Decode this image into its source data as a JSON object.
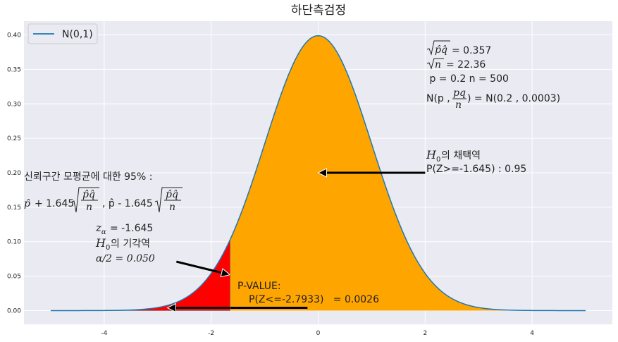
{
  "chart_data": {
    "type": "area",
    "title": "하단측검정",
    "xlabel": "",
    "ylabel": "",
    "xlim": [
      -5.5,
      5.5
    ],
    "ylim": [
      -0.02,
      0.42
    ],
    "grid": true,
    "legend": {
      "position": "top-left",
      "entries": [
        "N(0,1)"
      ]
    },
    "x_ticks": [
      -4,
      -2,
      0,
      2,
      4
    ],
    "x_tick_labels": [
      "-4",
      "-2",
      "0",
      "2",
      "4"
    ],
    "y_ticks": [
      0.0,
      0.05,
      0.1,
      0.15,
      0.2,
      0.25,
      0.3,
      0.35,
      0.4
    ],
    "y_tick_labels": [
      "0.00",
      "0.05",
      "0.10",
      "0.15",
      "0.20",
      "0.25",
      "0.30",
      "0.35",
      "0.40"
    ],
    "series": [
      {
        "name": "N(0,1)",
        "distribution": "standard-normal",
        "x_range": [
          -5,
          5
        ],
        "color": "#1f77b4"
      }
    ],
    "regions": [
      {
        "label": "rejection",
        "x_from": -5,
        "x_to": -1.645,
        "color": "#ff0000"
      },
      {
        "label": "acceptance",
        "x_from": -1.645,
        "x_to": 5,
        "color": "#ffa500"
      }
    ],
    "critical_value": -1.645,
    "observed_z": -2.7933,
    "arrows": [
      {
        "from": [
          2.0,
          0.2
        ],
        "to": [
          0.0,
          0.2
        ]
      },
      {
        "from": [
          -2.65,
          0.071
        ],
        "to": [
          -1.65,
          0.052
        ]
      },
      {
        "from": [
          -0.2,
          0.004
        ],
        "to": [
          -2.82,
          0.004
        ]
      }
    ],
    "annotations": {
      "sqrt_pq": "= 0.357",
      "sqrt_n": "= 22.36",
      "p_n": " p = 0.2 n = 500",
      "normal_prefix": "N(p ,",
      "normal_suffix": ") = N(0.2 , 0.0003)",
      "h0_accept_suffix": "의 채택역",
      "accept_prob": "P(Z>=-1.645) : 0.95",
      "ci_title": "신뢰구간 모평균에 대한 95% :",
      "ci_plus": "+ 1.645",
      "ci_minus": ", p̂ - 1.645",
      "z_alpha_value": "= -1.645",
      "h0_reject_suffix": "의 기각역",
      "alpha_value": "α/2 = 0.050",
      "pvalue_label": "P-VALUE:",
      "pvalue_expr": "P(Z<=-2.7933)   = 0.0026"
    }
  },
  "colors": {
    "plot_bg": "#eaeaf2",
    "grid": "#ffffff",
    "line": "#1f77b4",
    "reject": "#ff0000",
    "accept": "#ffa500"
  }
}
